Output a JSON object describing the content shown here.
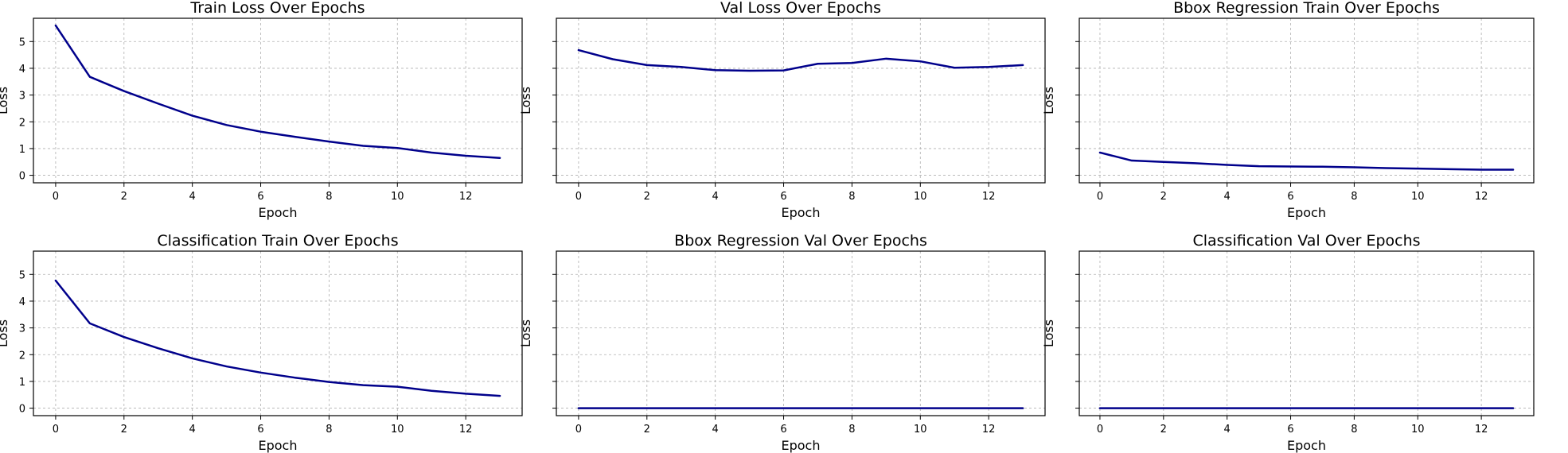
{
  "chart_data": [
    {
      "type": "line",
      "title": "Train Loss Over Epochs",
      "xlabel": "Epoch",
      "ylabel": "Loss",
      "x": [
        0,
        1,
        2,
        3,
        4,
        5,
        6,
        7,
        8,
        9,
        10,
        11,
        12,
        13
      ],
      "xlim": [
        -0.65,
        13.65
      ],
      "ylim": [
        -0.28,
        5.87
      ],
      "xticks": [
        0,
        2,
        4,
        6,
        8,
        10,
        12
      ],
      "yticks": [
        0,
        1,
        2,
        3,
        4,
        5
      ],
      "show_ytick_labels": true,
      "grid": true,
      "series": [
        {
          "color": "#00008b",
          "values": [
            5.6,
            3.68,
            3.15,
            2.68,
            2.23,
            1.88,
            1.63,
            1.44,
            1.26,
            1.1,
            1.02,
            0.85,
            0.73,
            0.65
          ]
        }
      ]
    },
    {
      "type": "line",
      "title": "Val Loss Over Epochs",
      "xlabel": "Epoch",
      "ylabel": "Loss",
      "x": [
        0,
        1,
        2,
        3,
        4,
        5,
        6,
        7,
        8,
        9,
        10,
        11,
        12,
        13
      ],
      "xlim": [
        -0.65,
        13.65
      ],
      "ylim": [
        -0.28,
        5.87
      ],
      "xticks": [
        0,
        2,
        4,
        6,
        8,
        10,
        12
      ],
      "yticks": [
        0,
        1,
        2,
        3,
        4,
        5
      ],
      "show_ytick_labels": false,
      "grid": true,
      "series": [
        {
          "color": "#00008b",
          "values": [
            4.68,
            4.34,
            4.12,
            4.05,
            3.93,
            3.91,
            3.92,
            4.17,
            4.2,
            4.36,
            4.26,
            4.02,
            4.05,
            4.12
          ]
        }
      ]
    },
    {
      "type": "line",
      "title": "Bbox Regression Train Over Epochs",
      "xlabel": "Epoch",
      "ylabel": "Loss",
      "x": [
        0,
        1,
        2,
        3,
        4,
        5,
        6,
        7,
        8,
        9,
        10,
        11,
        12,
        13
      ],
      "xlim": [
        -0.65,
        13.65
      ],
      "ylim": [
        -0.28,
        5.87
      ],
      "xticks": [
        0,
        2,
        4,
        6,
        8,
        10,
        12
      ],
      "yticks": [
        0,
        1,
        2,
        3,
        4,
        5
      ],
      "show_ytick_labels": false,
      "grid": true,
      "series": [
        {
          "color": "#00008b",
          "values": [
            0.85,
            0.55,
            0.5,
            0.45,
            0.39,
            0.34,
            0.33,
            0.32,
            0.3,
            0.27,
            0.25,
            0.23,
            0.21,
            0.21
          ]
        }
      ]
    },
    {
      "type": "line",
      "title": "Classification Train Over Epochs",
      "xlabel": "Epoch",
      "ylabel": "Loss",
      "x": [
        0,
        1,
        2,
        3,
        4,
        5,
        6,
        7,
        8,
        9,
        10,
        11,
        12,
        13
      ],
      "xlim": [
        -0.65,
        13.65
      ],
      "ylim": [
        -0.28,
        5.87
      ],
      "xticks": [
        0,
        2,
        4,
        6,
        8,
        10,
        12
      ],
      "yticks": [
        0,
        1,
        2,
        3,
        4,
        5
      ],
      "show_ytick_labels": true,
      "grid": true,
      "series": [
        {
          "color": "#00008b",
          "values": [
            4.77,
            3.17,
            2.66,
            2.24,
            1.86,
            1.56,
            1.33,
            1.14,
            0.98,
            0.86,
            0.8,
            0.65,
            0.54,
            0.46
          ]
        }
      ]
    },
    {
      "type": "line",
      "title": "Bbox Regression Val Over Epochs",
      "xlabel": "Epoch",
      "ylabel": "Loss",
      "x": [
        0,
        1,
        2,
        3,
        4,
        5,
        6,
        7,
        8,
        9,
        10,
        11,
        12,
        13
      ],
      "xlim": [
        -0.65,
        13.65
      ],
      "ylim": [
        -0.28,
        5.87
      ],
      "xticks": [
        0,
        2,
        4,
        6,
        8,
        10,
        12
      ],
      "yticks": [
        0,
        1,
        2,
        3,
        4,
        5
      ],
      "show_ytick_labels": false,
      "grid": true,
      "series": [
        {
          "color": "#00008b",
          "values": [
            0,
            0,
            0,
            0,
            0,
            0,
            0,
            0,
            0,
            0,
            0,
            0,
            0,
            0
          ]
        }
      ]
    },
    {
      "type": "line",
      "title": "Classification Val Over Epochs",
      "xlabel": "Epoch",
      "ylabel": "Loss",
      "x": [
        0,
        1,
        2,
        3,
        4,
        5,
        6,
        7,
        8,
        9,
        10,
        11,
        12,
        13
      ],
      "xlim": [
        -0.65,
        13.65
      ],
      "ylim": [
        -0.28,
        5.87
      ],
      "xticks": [
        0,
        2,
        4,
        6,
        8,
        10,
        12
      ],
      "yticks": [
        0,
        1,
        2,
        3,
        4,
        5
      ],
      "show_ytick_labels": false,
      "grid": true,
      "series": [
        {
          "color": "#00008b",
          "values": [
            0,
            0,
            0,
            0,
            0,
            0,
            0,
            0,
            0,
            0,
            0,
            0,
            0,
            0
          ]
        }
      ]
    }
  ]
}
